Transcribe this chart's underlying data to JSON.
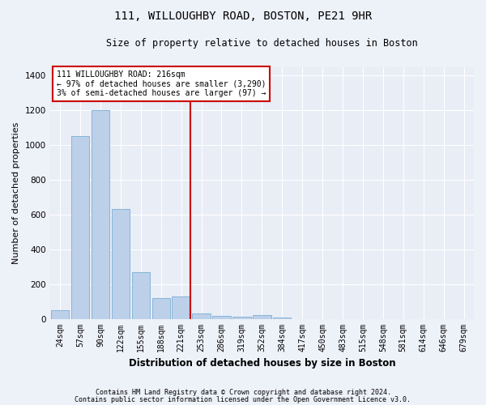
{
  "title_line1": "111, WILLOUGHBY ROAD, BOSTON, PE21 9HR",
  "title_line2": "Size of property relative to detached houses in Boston",
  "xlabel": "Distribution of detached houses by size in Boston",
  "ylabel": "Number of detached properties",
  "footnote1": "Contains HM Land Registry data © Crown copyright and database right 2024.",
  "footnote2": "Contains public sector information licensed under the Open Government Licence v3.0.",
  "annotation_line1": "111 WILLOUGHBY ROAD: 216sqm",
  "annotation_line2": "← 97% of detached houses are smaller (3,290)",
  "annotation_line3": "3% of semi-detached houses are larger (97) →",
  "bar_labels": [
    "24sqm",
    "57sqm",
    "90sqm",
    "122sqm",
    "155sqm",
    "188sqm",
    "221sqm",
    "253sqm",
    "286sqm",
    "319sqm",
    "352sqm",
    "384sqm",
    "417sqm",
    "450sqm",
    "483sqm",
    "515sqm",
    "548sqm",
    "581sqm",
    "614sqm",
    "646sqm",
    "679sqm"
  ],
  "bar_values": [
    50,
    1050,
    1200,
    630,
    270,
    120,
    130,
    30,
    15,
    10,
    20,
    5,
    0,
    0,
    0,
    0,
    0,
    0,
    0,
    0,
    0
  ],
  "bar_color": "#bdd0e9",
  "bar_edgecolor": "#7aadd4",
  "vline_color": "#cc0000",
  "ylim": [
    0,
    1450
  ],
  "yticks": [
    0,
    200,
    400,
    600,
    800,
    1000,
    1200,
    1400
  ],
  "plot_bg": "#e8edf6",
  "fig_bg": "#edf1f8",
  "grid_color": "#ffffff",
  "annotation_box_facecolor": "#ffffff",
  "annotation_box_edgecolor": "#cc0000"
}
